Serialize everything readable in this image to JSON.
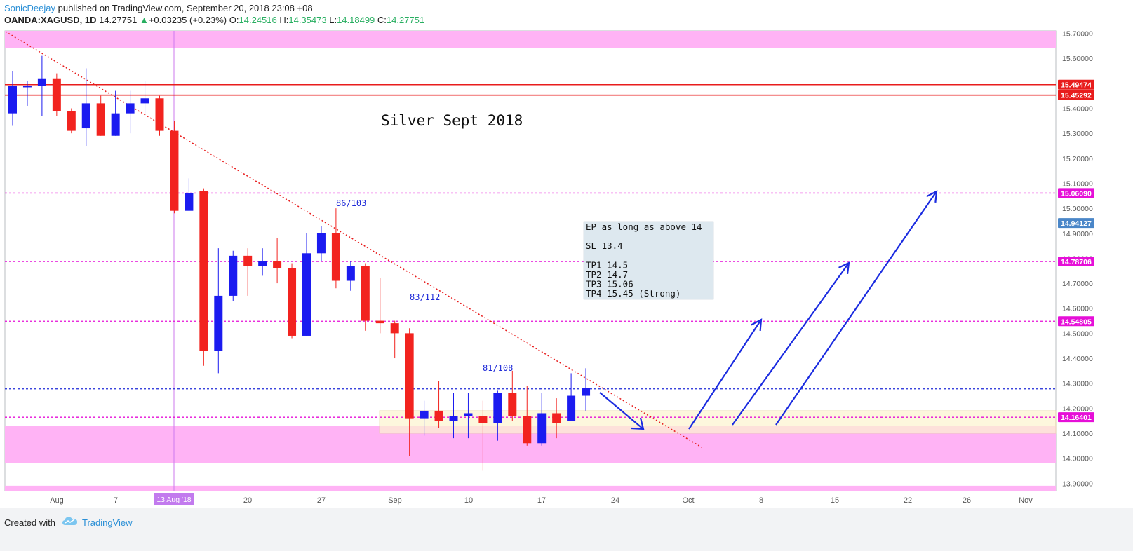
{
  "header": {
    "author": "SonicDeejay",
    "published": "published on TradingView.com, September 20, 2018 23:08 +08",
    "symbol": "OANDA:XAGUSD, 1D",
    "last": "14.27751",
    "change_arrow": "▲",
    "change": "+0.03235 (+0.23%)",
    "o_label": "O:",
    "o": "14.24516",
    "h_label": "H:",
    "h": "14.35473",
    "l_label": "L:",
    "l": "14.18499",
    "c_label": "C:",
    "c": "14.27751"
  },
  "footer": {
    "created_with": "Created with",
    "brand": "TradingView",
    "logo_icon": "tradingview-cloud-icon"
  },
  "colors": {
    "up": "#1b1bf0",
    "down": "#f2231f",
    "pink_zone": "#ffb3f5",
    "magenta_line": "#e60fd8",
    "red_line": "#e81c1c",
    "trend": "#e81c1c",
    "arrow": "#1a2be0",
    "price_line": "#1e2ad8",
    "note_bg": "#dde8ef",
    "vline": "#cc79ee"
  },
  "chart_data": {
    "type": "candlestick",
    "title": "Silver Sept 2018",
    "x_ticks": [
      "Aug",
      "7",
      "13 Aug '18",
      "20",
      "27",
      "Sep",
      "10",
      "17",
      "24",
      "Oct",
      "8",
      "15",
      "22",
      "26",
      "Nov"
    ],
    "y_ticks": [
      "15.70000",
      "15.60000",
      "15.50000",
      "15.40000",
      "15.30000",
      "15.20000",
      "15.10000",
      "15.00000",
      "14.90000",
      "14.80000",
      "14.70000",
      "14.60000",
      "14.50000",
      "14.40000",
      "14.30000",
      "14.20000",
      "14.10000",
      "14.00000",
      "13.90000"
    ],
    "ylim": [
      13.87,
      15.71
    ],
    "candles": [
      {
        "o": 15.38,
        "h": 15.55,
        "l": 15.33,
        "c": 15.49
      },
      {
        "o": 15.49,
        "h": 15.51,
        "l": 15.41,
        "c": 15.49
      },
      {
        "o": 15.49,
        "h": 15.61,
        "l": 15.37,
        "c": 15.52
      },
      {
        "o": 15.52,
        "h": 15.54,
        "l": 15.37,
        "c": 15.39
      },
      {
        "o": 15.39,
        "h": 15.4,
        "l": 15.3,
        "c": 15.31
      },
      {
        "o": 15.32,
        "h": 15.56,
        "l": 15.25,
        "c": 15.42
      },
      {
        "o": 15.42,
        "h": 15.45,
        "l": 15.29,
        "c": 15.29
      },
      {
        "o": 15.29,
        "h": 15.47,
        "l": 15.29,
        "c": 15.38
      },
      {
        "o": 15.38,
        "h": 15.47,
        "l": 15.3,
        "c": 15.42
      },
      {
        "o": 15.42,
        "h": 15.51,
        "l": 15.38,
        "c": 15.44
      },
      {
        "o": 15.44,
        "h": 15.45,
        "l": 15.29,
        "c": 15.31
      },
      {
        "o": 15.31,
        "h": 15.35,
        "l": 14.98,
        "c": 14.99
      },
      {
        "o": 14.99,
        "h": 15.12,
        "l": 14.99,
        "c": 15.06
      },
      {
        "o": 15.07,
        "h": 15.08,
        "l": 14.37,
        "c": 14.43
      },
      {
        "o": 14.43,
        "h": 14.84,
        "l": 14.34,
        "c": 14.65
      },
      {
        "o": 14.65,
        "h": 14.83,
        "l": 14.63,
        "c": 14.81
      },
      {
        "o": 14.81,
        "h": 14.84,
        "l": 14.65,
        "c": 14.77
      },
      {
        "o": 14.77,
        "h": 14.84,
        "l": 14.73,
        "c": 14.79
      },
      {
        "o": 14.79,
        "h": 14.88,
        "l": 14.7,
        "c": 14.76
      },
      {
        "o": 14.76,
        "h": 14.78,
        "l": 14.48,
        "c": 14.49
      },
      {
        "o": 14.49,
        "h": 14.9,
        "l": 14.49,
        "c": 14.82
      },
      {
        "o": 14.82,
        "h": 14.93,
        "l": 14.79,
        "c": 14.9
      },
      {
        "o": 14.9,
        "h": 15.0,
        "l": 14.68,
        "c": 14.71
      },
      {
        "o": 14.71,
        "h": 14.79,
        "l": 14.67,
        "c": 14.77
      },
      {
        "o": 14.77,
        "h": 14.78,
        "l": 14.51,
        "c": 14.55
      },
      {
        "o": 14.55,
        "h": 14.72,
        "l": 14.5,
        "c": 14.54
      },
      {
        "o": 14.54,
        "h": 14.55,
        "l": 14.4,
        "c": 14.5
      },
      {
        "o": 14.5,
        "h": 14.52,
        "l": 14.01,
        "c": 14.16
      },
      {
        "o": 14.16,
        "h": 14.23,
        "l": 14.09,
        "c": 14.19
      },
      {
        "o": 14.19,
        "h": 14.31,
        "l": 14.12,
        "c": 14.15
      },
      {
        "o": 14.15,
        "h": 14.26,
        "l": 14.08,
        "c": 14.17
      },
      {
        "o": 14.17,
        "h": 14.26,
        "l": 14.08,
        "c": 14.18
      },
      {
        "o": 14.17,
        "h": 14.23,
        "l": 13.95,
        "c": 14.14
      },
      {
        "o": 14.14,
        "h": 14.27,
        "l": 14.07,
        "c": 14.26
      },
      {
        "o": 14.26,
        "h": 14.35,
        "l": 14.15,
        "c": 14.17
      },
      {
        "o": 14.17,
        "h": 14.29,
        "l": 14.05,
        "c": 14.06
      },
      {
        "o": 14.06,
        "h": 14.26,
        "l": 14.05,
        "c": 14.18
      },
      {
        "o": 14.18,
        "h": 14.24,
        "l": 14.08,
        "c": 14.14
      },
      {
        "o": 14.15,
        "h": 14.34,
        "l": 14.15,
        "c": 14.25
      },
      {
        "o": 14.25,
        "h": 14.36,
        "l": 14.19,
        "c": 14.28
      }
    ],
    "horizontal_lines": [
      {
        "price": 15.49474,
        "label": "15.49474",
        "style": "solid",
        "color": "#e81c1c"
      },
      {
        "price": 15.45292,
        "label": "15.45292",
        "style": "solid",
        "color": "#e81c1c"
      },
      {
        "price": 15.0609,
        "label": "15.06090",
        "style": "dashed",
        "color": "#e60fd8"
      },
      {
        "price": 14.78706,
        "label": "14.78706",
        "style": "dashed",
        "color": "#e60fd8"
      },
      {
        "price": 14.54805,
        "label": "14.54805",
        "style": "dashed",
        "color": "#e60fd8"
      },
      {
        "price": 14.16401,
        "label": "14.16401",
        "style": "dashed",
        "color": "#e60fd8"
      },
      {
        "price": 14.27751,
        "label": "",
        "style": "dashed",
        "color": "#1e2ad8"
      }
    ],
    "current_price_label": {
      "price": 14.94127,
      "label": "14.94127",
      "color": "#4a86c8"
    },
    "zones": [
      {
        "from": 15.64,
        "to": 15.71,
        "color": "#ffb3f5"
      },
      {
        "from": 13.98,
        "to": 14.13,
        "color": "#ffb3f5"
      },
      {
        "from": 13.87,
        "to": 13.89,
        "color": "#ffb3f5"
      },
      {
        "from": 14.1,
        "to": 14.19,
        "color": "#fdf5d0"
      }
    ],
    "annotations": [
      "86/103",
      "83/112",
      "81/108"
    ],
    "note": {
      "lines": [
        "EP as long as above 14",
        "",
        "SL 13.4",
        "",
        "TP1 14.5",
        "TP2 14.7",
        "TP3 15.06",
        "TP4 15.45 (Strong)"
      ]
    }
  }
}
